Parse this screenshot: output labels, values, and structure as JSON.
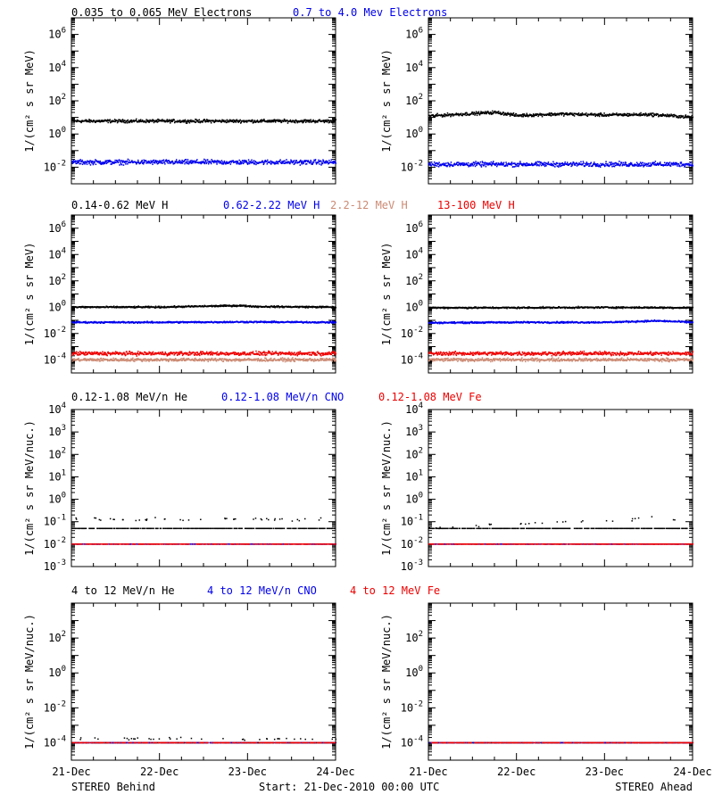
{
  "colors": {
    "black": "#000000",
    "blue": "#0000ee",
    "tan": "#cc8a73",
    "red": "#ee0000"
  },
  "x_axis": {
    "ticks": [
      "21-Dec",
      "22-Dec",
      "23-Dec",
      "24-Dec"
    ],
    "range_days": [
      0,
      3
    ]
  },
  "footer": {
    "left": "STEREO Behind",
    "center": "Start: 21-Dec-2010 00:00 UTC",
    "right": "STEREO Ahead"
  },
  "rows": [
    {
      "legend": [
        {
          "text": "0.035 to 0.065 MeV Electrons",
          "color": "#000000"
        },
        {
          "text": "0.7 to 4.0 Mev Electrons",
          "color": "#0000ee"
        }
      ],
      "ylabel": "1/(cm² s sr MeV)",
      "yscale": "log",
      "ylim_exp": [
        -3,
        7
      ],
      "tick_labels": [
        {
          "exp": 6,
          "text": "10",
          "sup": "6"
        },
        {
          "exp": 4,
          "text": "10",
          "sup": "4"
        },
        {
          "exp": 2,
          "text": "10",
          "sup": "2"
        },
        {
          "exp": 0,
          "text": "10",
          "sup": "0"
        },
        {
          "exp": -2,
          "text": "10",
          "sup": "-2"
        }
      ]
    },
    {
      "legend": [
        {
          "text": "0.14-0.62 MeV H",
          "color": "#000000"
        },
        {
          "text": "0.62-2.22 MeV H",
          "color": "#0000ee"
        },
        {
          "text": "2.2-12 MeV H",
          "color": "#cc8a73"
        },
        {
          "text": "13-100 MeV H",
          "color": "#ee0000"
        }
      ],
      "ylabel": "1/(cm² s sr MeV)",
      "yscale": "log",
      "ylim_exp": [
        -5,
        7
      ],
      "tick_labels": [
        {
          "exp": 6,
          "text": "10",
          "sup": "6"
        },
        {
          "exp": 4,
          "text": "10",
          "sup": "4"
        },
        {
          "exp": 2,
          "text": "10",
          "sup": "2"
        },
        {
          "exp": 0,
          "text": "10",
          "sup": "0"
        },
        {
          "exp": -2,
          "text": "10",
          "sup": "-2"
        },
        {
          "exp": -4,
          "text": "10",
          "sup": "-4"
        }
      ]
    },
    {
      "legend": [
        {
          "text": "0.12-1.08 MeV/n He",
          "color": "#000000"
        },
        {
          "text": "0.12-1.08 MeV/n CNO",
          "color": "#0000ee"
        },
        {
          "text": "0.12-1.08 MeV Fe",
          "color": "#ee0000"
        }
      ],
      "ylabel": "1/(cm² s sr MeV/nuc.)",
      "yscale": "log",
      "ylim_exp": [
        -3,
        4
      ],
      "tick_labels": [
        {
          "exp": 4,
          "text": "10",
          "sup": "4"
        },
        {
          "exp": 3,
          "text": "10",
          "sup": "3"
        },
        {
          "exp": 2,
          "text": "10",
          "sup": "2"
        },
        {
          "exp": 1,
          "text": "10",
          "sup": "1"
        },
        {
          "exp": 0,
          "text": "10",
          "sup": "0"
        },
        {
          "exp": -1,
          "text": "10",
          "sup": "-1"
        },
        {
          "exp": -2,
          "text": "10",
          "sup": "-2"
        },
        {
          "exp": -3,
          "text": "10",
          "sup": "-3"
        }
      ]
    },
    {
      "legend": [
        {
          "text": "4 to 12 MeV/n He",
          "color": "#000000"
        },
        {
          "text": "4 to 12 MeV/n CNO",
          "color": "#0000ee"
        },
        {
          "text": "4 to 12 MeV Fe",
          "color": "#ee0000"
        }
      ],
      "ylabel": "1/(cm² s sr MeV/nuc.)",
      "yscale": "log",
      "ylim_exp": [
        -5,
        4
      ],
      "tick_labels": [
        {
          "exp": 2,
          "text": "10",
          "sup": "2"
        },
        {
          "exp": 0,
          "text": "10",
          "sup": "0"
        },
        {
          "exp": -2,
          "text": "10",
          "sup": "-2"
        },
        {
          "exp": -4,
          "text": "10",
          "sup": "-4"
        }
      ]
    }
  ],
  "chart_data": [
    {
      "type": "scatter",
      "panel": "STEREO Behind - electrons",
      "yscale": "log",
      "x_unit": "days since 21-Dec-2010",
      "series": [
        {
          "name": "0.035 to 0.065 MeV Electrons",
          "color": "#000000",
          "level": 6,
          "scatter_dex": 0.08,
          "x": [
            0,
            0.5,
            1,
            1.5,
            2,
            2.5,
            3
          ],
          "y": [
            6,
            6,
            6,
            6,
            6,
            6,
            6
          ]
        },
        {
          "name": "0.7 to 4.0 Mev Electrons",
          "color": "#0000ee",
          "level": 0.02,
          "scatter_dex": 0.12,
          "x": [
            0,
            0.5,
            1,
            1.5,
            2,
            2.5,
            3
          ],
          "y": [
            0.02,
            0.02,
            0.02,
            0.02,
            0.02,
            0.02,
            0.02
          ]
        }
      ]
    },
    {
      "type": "scatter",
      "panel": "STEREO Ahead - electrons",
      "yscale": "log",
      "x_unit": "days since 21-Dec-2010",
      "series": [
        {
          "name": "0.035 to 0.065 MeV Electrons",
          "color": "#000000",
          "level": 15,
          "scatter_dex": 0.08,
          "x": [
            0,
            0.5,
            0.75,
            1,
            1.5,
            2,
            2.5,
            3
          ],
          "y": [
            12,
            17,
            20,
            13,
            16,
            14,
            15,
            10
          ]
        },
        {
          "name": "0.7 to 4.0 Mev Electrons",
          "color": "#0000ee",
          "level": 0.015,
          "scatter_dex": 0.12,
          "x": [
            0,
            0.5,
            1,
            1.5,
            2,
            2.5,
            3
          ],
          "y": [
            0.015,
            0.015,
            0.015,
            0.015,
            0.015,
            0.015,
            0.015
          ]
        }
      ]
    },
    {
      "type": "scatter",
      "panel": "STEREO Behind - protons",
      "yscale": "log",
      "x_unit": "days since 21-Dec-2010",
      "series": [
        {
          "name": "0.14-0.62 MeV H",
          "color": "#000000",
          "level": 1.0,
          "scatter_dex": 0.05,
          "x": [
            0,
            1,
            1.9,
            2.1,
            3
          ],
          "y": [
            1.0,
            1.0,
            1.3,
            1.1,
            1.0
          ]
        },
        {
          "name": "0.62-2.22 MeV H",
          "color": "#0000ee",
          "level": 0.07,
          "scatter_dex": 0.05,
          "x": [
            0,
            1,
            2,
            3
          ],
          "y": [
            0.07,
            0.07,
            0.075,
            0.07
          ]
        },
        {
          "name": "2.2-12 MeV H",
          "color": "#cc8a73",
          "level": 0.0001,
          "scatter_dex": 0.1,
          "x": [
            0,
            1,
            2,
            3
          ],
          "y": [
            0.0001,
            0.0001,
            0.0001,
            0.0001
          ]
        },
        {
          "name": "13-100 MeV H",
          "color": "#ee0000",
          "level": 0.0003,
          "scatter_dex": 0.12,
          "x": [
            0,
            1,
            2,
            3
          ],
          "y": [
            0.0003,
            0.0003,
            0.0003,
            0.0003
          ]
        }
      ]
    },
    {
      "type": "scatter",
      "panel": "STEREO Ahead - protons",
      "yscale": "log",
      "x_unit": "days since 21-Dec-2010",
      "series": [
        {
          "name": "0.14-0.62 MeV H",
          "color": "#000000",
          "level": 0.9,
          "scatter_dex": 0.05,
          "x": [
            0,
            1,
            2,
            3
          ],
          "y": [
            0.9,
            0.9,
            0.95,
            0.9
          ]
        },
        {
          "name": "0.62-2.22 MeV H",
          "color": "#0000ee",
          "level": 0.07,
          "scatter_dex": 0.05,
          "x": [
            0,
            1,
            2,
            2.6,
            3
          ],
          "y": [
            0.065,
            0.07,
            0.07,
            0.09,
            0.07
          ]
        },
        {
          "name": "2.2-12 MeV H",
          "color": "#cc8a73",
          "level": 0.0001,
          "scatter_dex": 0.1,
          "x": [
            0,
            1,
            2,
            3
          ],
          "y": [
            0.0001,
            0.0001,
            0.0001,
            0.0001
          ]
        },
        {
          "name": "13-100 MeV H",
          "color": "#ee0000",
          "level": 0.0003,
          "scatter_dex": 0.12,
          "x": [
            0,
            1,
            2,
            3
          ],
          "y": [
            0.0003,
            0.0003,
            0.0003,
            0.0003
          ]
        }
      ]
    },
    {
      "type": "scatter",
      "panel": "STEREO Behind - 0.12-1.08 MeV/n ions",
      "yscale": "log",
      "x_unit": "days since 21-Dec-2010",
      "series": [
        {
          "name": "0.12-1.08 MeV/n He",
          "color": "#000000",
          "level": 0.05,
          "upper_points": 0.13,
          "x": [
            0,
            3
          ],
          "y": [
            0.05,
            0.05
          ]
        },
        {
          "name": "0.12-1.08 MeV/n CNO",
          "color": "#0000ee",
          "level": 0.01,
          "x": [
            0,
            3
          ],
          "y": [
            0.01,
            0.01
          ]
        },
        {
          "name": "0.12-1.08 MeV Fe",
          "color": "#ee0000",
          "level": 0.01,
          "x": [
            0,
            3
          ],
          "y": [
            0.01,
            0.01
          ]
        }
      ]
    },
    {
      "type": "scatter",
      "panel": "STEREO Ahead - 0.12-1.08 MeV/n ions",
      "yscale": "log",
      "x_unit": "days since 21-Dec-2010",
      "series": [
        {
          "name": "0.12-1.08 MeV/n He",
          "color": "#000000",
          "level": 0.05,
          "upper_points": 0.12,
          "x": [
            0,
            2.3,
            2.6,
            3
          ],
          "y": [
            0.05,
            0.12,
            0.2,
            0.05
          ]
        },
        {
          "name": "0.12-1.08 MeV/n CNO",
          "color": "#0000ee",
          "level": 0.01,
          "x": [
            0,
            3
          ],
          "y": [
            0.01,
            0.01
          ]
        },
        {
          "name": "0.12-1.08 MeV Fe",
          "color": "#ee0000",
          "level": 0.01,
          "x": [
            0,
            3
          ],
          "y": [
            0.01,
            0.01
          ]
        }
      ]
    },
    {
      "type": "scatter",
      "panel": "STEREO Behind - 4-12 MeV/n ions",
      "yscale": "log",
      "x_unit": "days since 21-Dec-2010",
      "series": [
        {
          "name": "4 to 12 MeV/n He",
          "color": "#000000",
          "level": 0.0001,
          "upper_points": 0.00017,
          "x": [
            0,
            3
          ],
          "y": [
            0.0001,
            0.0001
          ]
        },
        {
          "name": "4 to 12 MeV/n CNO",
          "color": "#0000ee",
          "level": 0.0001,
          "x": [
            0,
            3
          ],
          "y": [
            0.0001,
            0.0001
          ]
        },
        {
          "name": "4 to 12 MeV Fe",
          "color": "#ee0000",
          "level": 0.0001,
          "x": [
            0,
            3
          ],
          "y": [
            0.0001,
            0.0001
          ]
        }
      ]
    },
    {
      "type": "scatter",
      "panel": "STEREO Ahead - 4-12 MeV/n ions",
      "yscale": "log",
      "x_unit": "days since 21-Dec-2010",
      "series": [
        {
          "name": "4 to 12 MeV/n He",
          "color": "#000000",
          "level": 0.0001,
          "x": [
            0,
            3
          ],
          "y": [
            0.0001,
            0.0001
          ]
        },
        {
          "name": "4 to 12 MeV/n CNO",
          "color": "#0000ee",
          "level": 0.0001,
          "x": [
            0,
            3
          ],
          "y": [
            0.0001,
            0.0001
          ]
        },
        {
          "name": "4 to 12 MeV Fe",
          "color": "#ee0000",
          "level": 0.0001,
          "x": [
            0,
            3
          ],
          "y": [
            0.0001,
            0.0001
          ]
        }
      ]
    }
  ]
}
